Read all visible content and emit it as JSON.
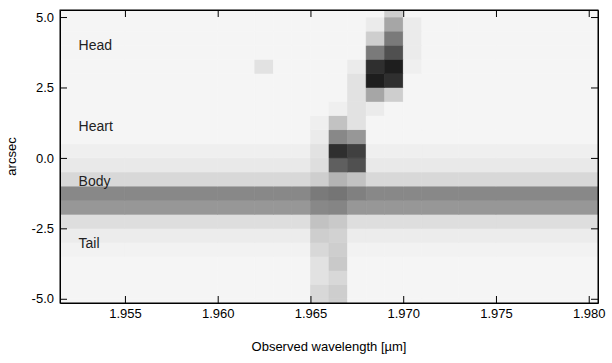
{
  "chart_data": {
    "type": "heatmap",
    "xlabel": "Observed wavelength [µm]",
    "ylabel": "arcsec",
    "xlim": [
      1.9515,
      1.9805
    ],
    "ylim": [
      -5.15,
      5.25
    ],
    "xticks": [
      1.955,
      {
        "value": 1.96,
        "label": "1.960"
      },
      1.965,
      {
        "value": 1.97,
        "label": "1.970"
      },
      1.975,
      {
        "value": 1.98,
        "label": "1.980"
      }
    ],
    "yticks": [
      {
        "value": -5,
        "label": "-5.0"
      },
      -2.5,
      {
        "value": 0,
        "label": "0.0"
      },
      2.5,
      {
        "value": 5,
        "label": "5.0"
      }
    ],
    "zlim": [
      0,
      1
    ],
    "x_edges": [
      1.95,
      1.955,
      1.96,
      1.962,
      1.963,
      1.964,
      1.965,
      1.966,
      1.967,
      1.968,
      1.969,
      1.97,
      1.971,
      1.973,
      1.975,
      1.985
    ],
    "y_edges": [
      -5.5,
      -5.0,
      -4.5,
      -4.0,
      -3.5,
      -3.0,
      -2.5,
      -2.0,
      -1.5,
      -1.0,
      -0.5,
      0.0,
      0.5,
      1.0,
      1.5,
      2.0,
      2.5,
      3.0,
      3.5,
      4.0,
      4.5,
      5.0,
      5.5
    ],
    "values": [
      [
        0.08,
        0.08,
        0.08,
        0.08,
        0.08,
        0.08,
        0.25,
        0.3,
        0.08,
        0.08,
        0.08,
        0.08,
        0.08,
        0.08,
        0.08
      ],
      [
        0.08,
        0.08,
        0.08,
        0.08,
        0.08,
        0.08,
        0.25,
        0.3,
        0.08,
        0.08,
        0.08,
        0.08,
        0.08,
        0.08,
        0.08
      ],
      [
        0.08,
        0.08,
        0.08,
        0.08,
        0.08,
        0.08,
        0.2,
        0.25,
        0.08,
        0.08,
        0.08,
        0.08,
        0.08,
        0.08,
        0.08
      ],
      [
        0.08,
        0.08,
        0.08,
        0.08,
        0.08,
        0.08,
        0.2,
        0.32,
        0.08,
        0.08,
        0.08,
        0.08,
        0.08,
        0.08,
        0.08
      ],
      [
        0.1,
        0.1,
        0.1,
        0.1,
        0.1,
        0.1,
        0.25,
        0.3,
        0.1,
        0.1,
        0.1,
        0.1,
        0.1,
        0.1,
        0.1
      ],
      [
        0.14,
        0.14,
        0.14,
        0.14,
        0.14,
        0.14,
        0.3,
        0.28,
        0.14,
        0.14,
        0.14,
        0.14,
        0.14,
        0.14,
        0.14
      ],
      [
        0.22,
        0.22,
        0.22,
        0.22,
        0.22,
        0.22,
        0.35,
        0.32,
        0.22,
        0.22,
        0.22,
        0.22,
        0.22,
        0.22,
        0.22
      ],
      [
        0.5,
        0.5,
        0.5,
        0.5,
        0.5,
        0.5,
        0.55,
        0.56,
        0.5,
        0.5,
        0.5,
        0.5,
        0.5,
        0.5,
        0.5
      ],
      [
        0.55,
        0.55,
        0.55,
        0.55,
        0.55,
        0.55,
        0.6,
        0.62,
        0.58,
        0.55,
        0.55,
        0.55,
        0.55,
        0.55,
        0.55
      ],
      [
        0.25,
        0.25,
        0.25,
        0.25,
        0.25,
        0.25,
        0.3,
        0.4,
        0.35,
        0.25,
        0.25,
        0.25,
        0.25,
        0.25,
        0.25
      ],
      [
        0.16,
        0.16,
        0.16,
        0.16,
        0.16,
        0.16,
        0.22,
        0.7,
        0.75,
        0.16,
        0.16,
        0.16,
        0.16,
        0.16,
        0.16
      ],
      [
        0.12,
        0.12,
        0.12,
        0.12,
        0.12,
        0.12,
        0.2,
        0.85,
        0.8,
        0.12,
        0.12,
        0.12,
        0.12,
        0.12,
        0.12
      ],
      [
        0.08,
        0.08,
        0.08,
        0.08,
        0.08,
        0.08,
        0.15,
        0.55,
        0.5,
        0.08,
        0.08,
        0.08,
        0.08,
        0.08,
        0.08
      ],
      [
        0.08,
        0.08,
        0.08,
        0.08,
        0.08,
        0.08,
        0.12,
        0.35,
        0.2,
        0.08,
        0.08,
        0.08,
        0.08,
        0.08,
        0.08
      ],
      [
        0.08,
        0.08,
        0.08,
        0.08,
        0.08,
        0.08,
        0.08,
        0.12,
        0.2,
        0.15,
        0.08,
        0.08,
        0.08,
        0.08,
        0.08
      ],
      [
        0.08,
        0.08,
        0.08,
        0.08,
        0.08,
        0.08,
        0.08,
        0.08,
        0.2,
        0.45,
        0.3,
        0.08,
        0.08,
        0.08,
        0.08
      ],
      [
        0.08,
        0.08,
        0.08,
        0.08,
        0.08,
        0.08,
        0.08,
        0.08,
        0.2,
        0.9,
        0.85,
        0.08,
        0.08,
        0.08,
        0.08
      ],
      [
        0.08,
        0.08,
        0.08,
        0.2,
        0.08,
        0.08,
        0.08,
        0.08,
        0.15,
        0.85,
        0.9,
        0.12,
        0.08,
        0.08,
        0.08
      ],
      [
        0.08,
        0.08,
        0.08,
        0.08,
        0.08,
        0.08,
        0.08,
        0.08,
        0.08,
        0.6,
        0.75,
        0.15,
        0.08,
        0.08,
        0.08
      ],
      [
        0.08,
        0.08,
        0.08,
        0.08,
        0.08,
        0.08,
        0.08,
        0.08,
        0.08,
        0.3,
        0.6,
        0.15,
        0.08,
        0.08,
        0.08
      ],
      [
        0.08,
        0.08,
        0.08,
        0.08,
        0.08,
        0.08,
        0.08,
        0.08,
        0.08,
        0.15,
        0.45,
        0.15,
        0.08,
        0.08,
        0.08
      ],
      [
        0.08,
        0.08,
        0.08,
        0.08,
        0.08,
        0.08,
        0.08,
        0.08,
        0.08,
        0.08,
        0.3,
        0.08,
        0.08,
        0.08,
        0.08
      ]
    ],
    "annotations": [
      {
        "text": "Head",
        "x": 1.9525,
        "y": 3.95
      },
      {
        "text": "Heart",
        "x": 1.9525,
        "y": 1.1
      },
      {
        "text": "Body",
        "x": 1.9525,
        "y": -0.87
      },
      {
        "text": "Tail",
        "x": 1.9525,
        "y": -3.05
      }
    ]
  }
}
